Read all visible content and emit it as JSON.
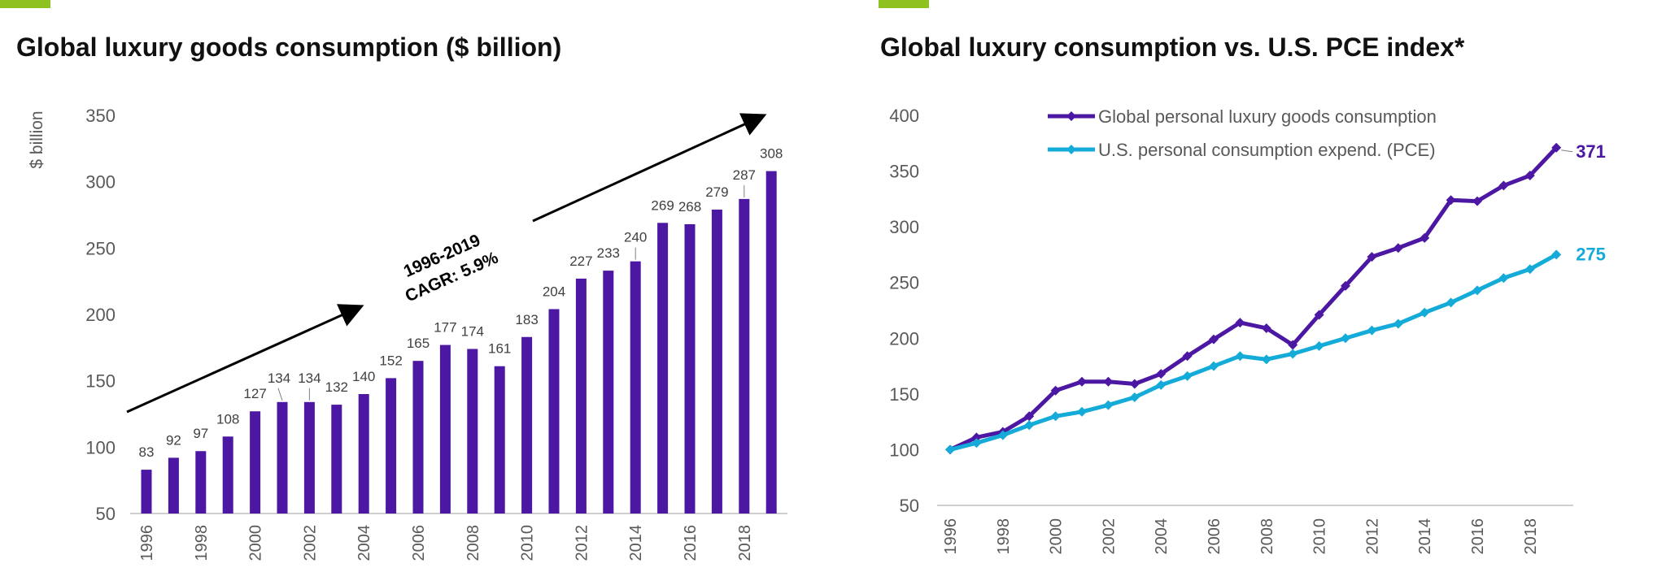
{
  "left_panel": {
    "title": "Global luxury goods consumption ($ billion)",
    "accent_color": "#8dc21f"
  },
  "right_panel": {
    "title": "Global luxury consumption vs. U.S. PCE index*",
    "accent_color": "#8dc21f"
  },
  "chart_data": [
    {
      "type": "bar",
      "title": "Global luxury goods consumption ($ billion)",
      "xlabel": "",
      "ylabel": "$ billion",
      "ylim": [
        50,
        350
      ],
      "yticks": [
        50,
        100,
        150,
        200,
        250,
        300,
        350
      ],
      "categories": [
        "1996",
        "1997",
        "1998",
        "1999",
        "2000",
        "2001",
        "2002",
        "2003",
        "2004",
        "2005",
        "2006",
        "2007",
        "2008",
        "2009",
        "2010",
        "2011",
        "2012",
        "2013",
        "2014",
        "2015",
        "2016",
        "2017",
        "2018",
        "2019"
      ],
      "xtick_labels": [
        "1996",
        "",
        "1998",
        "",
        "2000",
        "",
        "2002",
        "",
        "2004",
        "",
        "2006",
        "",
        "2008",
        "",
        "2010",
        "",
        "2012",
        "",
        "2014",
        "",
        "2016",
        "",
        "2018",
        ""
      ],
      "values": [
        83,
        92,
        97,
        108,
        127,
        134,
        134,
        132,
        140,
        152,
        165,
        177,
        174,
        161,
        183,
        204,
        227,
        233,
        240,
        269,
        268,
        279,
        287,
        308
      ],
      "bar_color": "#4b17a3",
      "annotation": {
        "line1": "1996-2019",
        "line2": "CAGR: 5.9%"
      }
    },
    {
      "type": "line",
      "title": "Global luxury consumption vs. U.S. PCE index*",
      "ylim": [
        50,
        400
      ],
      "yticks": [
        50,
        100,
        150,
        200,
        250,
        300,
        350,
        400
      ],
      "x": [
        1996,
        1997,
        1998,
        1999,
        2000,
        2001,
        2002,
        2003,
        2004,
        2005,
        2006,
        2007,
        2008,
        2009,
        2010,
        2011,
        2012,
        2013,
        2014,
        2015,
        2016,
        2017,
        2018,
        2019
      ],
      "xtick_labels": [
        "1996",
        "",
        "1998",
        "",
        "2000",
        "",
        "2002",
        "",
        "2004",
        "",
        "2006",
        "",
        "2008",
        "",
        "2010",
        "",
        "2012",
        "",
        "2014",
        "",
        "2016",
        "",
        "2018",
        ""
      ],
      "legend_position": "top",
      "series": [
        {
          "name": "Global personal luxury goods consumption",
          "color": "#4b17a3",
          "values": [
            100,
            111,
            116,
            130,
            153,
            161,
            161,
            159,
            168,
            184,
            199,
            214,
            209,
            194,
            221,
            247,
            273,
            281,
            290,
            324,
            323,
            337,
            346,
            371
          ],
          "end_label": "371"
        },
        {
          "name": "U.S. personal consumption expend. (PCE)",
          "color": "#14abd9",
          "values": [
            100,
            106,
            113,
            122,
            130,
            134,
            140,
            147,
            158,
            166,
            175,
            184,
            181,
            186,
            193,
            200,
            207,
            213,
            223,
            232,
            243,
            254,
            262,
            275
          ],
          "end_label": "275"
        }
      ]
    }
  ]
}
